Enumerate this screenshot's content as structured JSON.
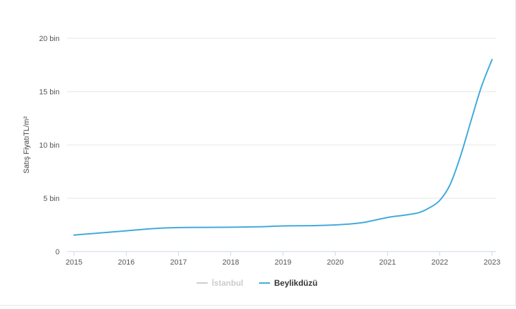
{
  "chart_data": {
    "type": "line",
    "ylabel": "Satış FiyatıTL/m²",
    "xlabel": "",
    "title": "",
    "ylim": [
      0,
      20000
    ],
    "xlim": [
      2015,
      2023
    ],
    "y_ticks": [
      {
        "value": 0,
        "label": "0"
      },
      {
        "value": 5000,
        "label": "5 bin"
      },
      {
        "value": 10000,
        "label": "10 bin"
      },
      {
        "value": 15000,
        "label": "15 bin"
      },
      {
        "value": 20000,
        "label": "20 bin"
      }
    ],
    "x_ticks": [
      {
        "value": 2015,
        "label": "2015"
      },
      {
        "value": 2016,
        "label": "2016"
      },
      {
        "value": 2017,
        "label": "2017"
      },
      {
        "value": 2018,
        "label": "2018"
      },
      {
        "value": 2019,
        "label": "2019"
      },
      {
        "value": 2020,
        "label": "2020"
      },
      {
        "value": 2021,
        "label": "2021"
      },
      {
        "value": 2022,
        "label": "2022"
      },
      {
        "value": 2023,
        "label": "2023"
      }
    ],
    "grid": "horizontal",
    "legend": {
      "placement": "bottom-center"
    },
    "series": [
      {
        "name": "İstanbul",
        "color": "#cccccc",
        "visible": false,
        "x": [],
        "y": []
      },
      {
        "name": "Beylikdüzü",
        "color": "#3fa9dc",
        "visible": true,
        "x": [
          2015,
          2015.5,
          2016,
          2016.5,
          2017,
          2017.5,
          2018,
          2018.5,
          2019,
          2019.5,
          2020,
          2020.5,
          2021,
          2021.3,
          2021.6,
          2021.8,
          2022,
          2022.2,
          2022.4,
          2022.6,
          2022.8,
          2023
        ],
        "y": [
          1550,
          1750,
          1950,
          2150,
          2250,
          2270,
          2280,
          2320,
          2400,
          2430,
          2500,
          2700,
          3200,
          3400,
          3650,
          4100,
          4800,
          6300,
          9000,
          12300,
          15500,
          18000
        ]
      }
    ]
  }
}
